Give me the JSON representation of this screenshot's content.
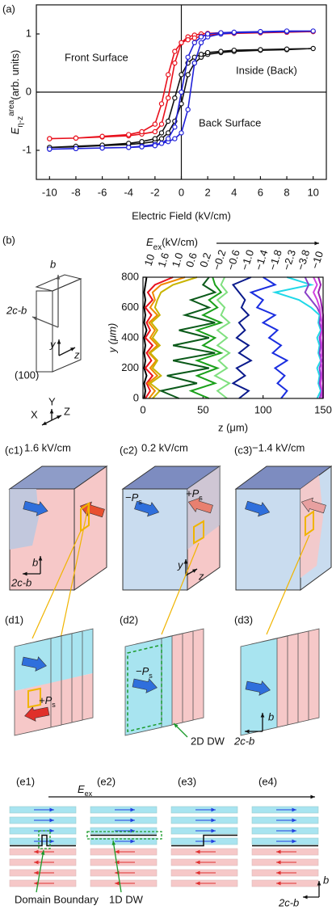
{
  "panel_labels": [
    "(a)",
    "(b)",
    "(c1)",
    "(c2)",
    "(c3)",
    "(d1)",
    "(d2)",
    "(d3)",
    "(e1)",
    "(e2)",
    "(e3)",
    "(e4)"
  ],
  "chart_data": [
    {
      "type": "line",
      "x_label": "Electric Field (kV/cm)",
      "y_label": {
        "symbol": "E",
        "sub": "η-z",
        "sup": "area",
        "unit": "(arb. units)"
      },
      "x": [
        -10,
        -8,
        -6,
        -4,
        -3,
        -2,
        -1.5,
        -1,
        -0.5,
        0,
        0.5,
        1,
        1.5,
        2,
        3,
        4,
        6,
        8,
        10,
        8,
        6,
        4,
        3,
        2,
        1.5,
        1,
        0.5,
        0,
        -0.5,
        -1,
        -1.5,
        -2,
        -3,
        -4,
        -6,
        -8,
        -10
      ],
      "series": [
        {
          "name": "Front Surface",
          "color": "#e8101c",
          "values": [
            -0.8,
            -0.79,
            -0.77,
            -0.75,
            -0.72,
            -0.68,
            -0.55,
            -0.1,
            0.5,
            0.85,
            0.95,
            0.98,
            1.0,
            1.01,
            1.02,
            1.02,
            1.03,
            1.03,
            1.04,
            1.03,
            1.02,
            1.01,
            1.0,
            0.98,
            0.96,
            0.93,
            0.9,
            0.85,
            0.7,
            0.3,
            -0.2,
            -0.55,
            -0.68,
            -0.73,
            -0.76,
            -0.79,
            -0.8
          ]
        },
        {
          "name": "Inside (Back)",
          "color": "#111111",
          "values": [
            -0.95,
            -0.94,
            -0.92,
            -0.9,
            -0.88,
            -0.85,
            -0.8,
            -0.7,
            -0.5,
            -0.2,
            0.3,
            0.5,
            0.6,
            0.65,
            0.68,
            0.7,
            0.72,
            0.73,
            0.75,
            0.74,
            0.73,
            0.72,
            0.7,
            0.68,
            0.65,
            0.6,
            0.5,
            0.3,
            -0.1,
            -0.5,
            -0.7,
            -0.8,
            -0.85,
            -0.88,
            -0.91,
            -0.93,
            -0.95
          ]
        },
        {
          "name": "Back Surface",
          "color": "#2020d8",
          "values": [
            -0.98,
            -0.97,
            -0.96,
            -0.95,
            -0.93,
            -0.9,
            -0.88,
            -0.85,
            -0.8,
            -0.7,
            -0.3,
            0.5,
            0.85,
            0.95,
            1.0,
            1.02,
            1.03,
            1.04,
            1.05,
            1.05,
            1.04,
            1.03,
            1.02,
            1.0,
            0.95,
            0.85,
            0.6,
            0.0,
            -0.6,
            -0.8,
            -0.88,
            -0.92,
            -0.94,
            -0.95,
            -0.96,
            -0.97,
            -0.98
          ]
        }
      ],
      "xlim": [
        -11,
        11
      ],
      "ylim": [
        -1.5,
        1.5
      ],
      "xticks": [
        -10,
        -8,
        -6,
        -4,
        -2,
        0,
        2,
        4,
        6,
        8,
        10
      ],
      "yticks": [
        -1,
        0,
        1
      ],
      "marker": "circle"
    },
    {
      "type": "line",
      "title": {
        "symbol": "E",
        "sub": "ex",
        "unit": "(kV/cm)"
      },
      "x_label": "z (μm)",
      "y_label": "y (μm)",
      "y": [
        0,
        50,
        100,
        150,
        200,
        250,
        300,
        350,
        400,
        450,
        500,
        550,
        600,
        650,
        700,
        750,
        800
      ],
      "series": [
        {
          "name": "10",
          "color": "#000000",
          "values": [
            1,
            2,
            1,
            3,
            1,
            2,
            1,
            2,
            1,
            3,
            1,
            2,
            1,
            2,
            1,
            2,
            3
          ]
        },
        {
          "name": "1.6",
          "color": "#e8121e",
          "values": [
            2,
            6,
            3,
            8,
            2,
            7,
            3,
            8,
            2,
            6,
            3,
            7,
            2,
            8,
            4,
            10,
            25
          ]
        },
        {
          "name": "1.0",
          "color": "#f08a00",
          "values": [
            5,
            10,
            4,
            12,
            6,
            11,
            5,
            12,
            6,
            10,
            5,
            12,
            6,
            10,
            8,
            15,
            35
          ]
        },
        {
          "name": "0.6",
          "color": "#c8b400",
          "values": [
            8,
            14,
            6,
            15,
            8,
            12,
            6,
            14,
            8,
            12,
            7,
            14,
            10,
            12,
            15,
            25,
            45
          ]
        },
        {
          "name": "0.2",
          "color": "#0b5a1a",
          "values": [
            30,
            15,
            45,
            20,
            55,
            25,
            60,
            25,
            55,
            30,
            60,
            35,
            55,
            40,
            60,
            50,
            55
          ]
        },
        {
          "name": "−0.2",
          "color": "#1aa01a",
          "values": [
            55,
            40,
            60,
            45,
            62,
            45,
            65,
            50,
            60,
            45,
            65,
            50,
            62,
            55,
            65,
            60,
            58
          ]
        },
        {
          "name": "−0.6",
          "color": "#7fe07f",
          "values": [
            70,
            62,
            72,
            60,
            70,
            63,
            72,
            62,
            70,
            62,
            72,
            65,
            68,
            62,
            70,
            65,
            68
          ]
        },
        {
          "name": "−1.0",
          "color": "#0a1a8c",
          "values": [
            80,
            88,
            75,
            85,
            78,
            90,
            80,
            88,
            78,
            85,
            80,
            88,
            82,
            85,
            80,
            75,
            90
          ]
        },
        {
          "name": "−1.4",
          "color": "#1a2ee0",
          "values": [
            115,
            120,
            112,
            118,
            110,
            120,
            108,
            115,
            105,
            112,
            100,
            110,
            95,
            100,
            90,
            110,
            100
          ]
        },
        {
          "name": "−1.8",
          "color": "#20d8e8",
          "values": [
            145,
            148,
            146,
            147,
            145,
            148,
            146,
            147,
            145,
            148,
            146,
            147,
            140,
            130,
            110,
            140,
            120
          ]
        },
        {
          "name": "−2.3",
          "color": "#8a40c8",
          "values": [
            147,
            149,
            147,
            148,
            147,
            149,
            147,
            148,
            147,
            149,
            147,
            148,
            145,
            140,
            135,
            138,
            135
          ]
        },
        {
          "name": "−3.8",
          "color": "#d040e0",
          "values": [
            149,
            149,
            148,
            149,
            149,
            148,
            149,
            149,
            148,
            149,
            149,
            148,
            147,
            145,
            142,
            145,
            142
          ]
        },
        {
          "name": "−10",
          "color": "#9a20b0",
          "values": [
            150,
            150,
            150,
            150,
            150,
            150,
            150,
            150,
            150,
            150,
            150,
            150,
            149,
            148,
            146,
            148,
            146
          ]
        }
      ],
      "xlim": [
        0,
        150
      ],
      "ylim": [
        0,
        800
      ],
      "xticks": [
        0,
        50,
        100,
        150
      ],
      "yticks": [
        0,
        200,
        400,
        600,
        800
      ]
    }
  ],
  "fields": [
    "1.6 kV/cm",
    "0.2 kV/cm",
    "−1.4 kV/cm"
  ],
  "labels": {
    "b": "b",
    "c_axis": "2c-b",
    "plane": "(100)",
    "y": "y",
    "z": "z",
    "X": "X",
    "Y": "Y",
    "Z": "Z",
    "minus_p": "−P",
    "plus_p": "+P",
    "sub_s": "s",
    "dw2d": "2D DW",
    "dw1d": "1D DW",
    "domain_boundary": "Domain Boundary",
    "e": "E",
    "ex": "ex"
  }
}
